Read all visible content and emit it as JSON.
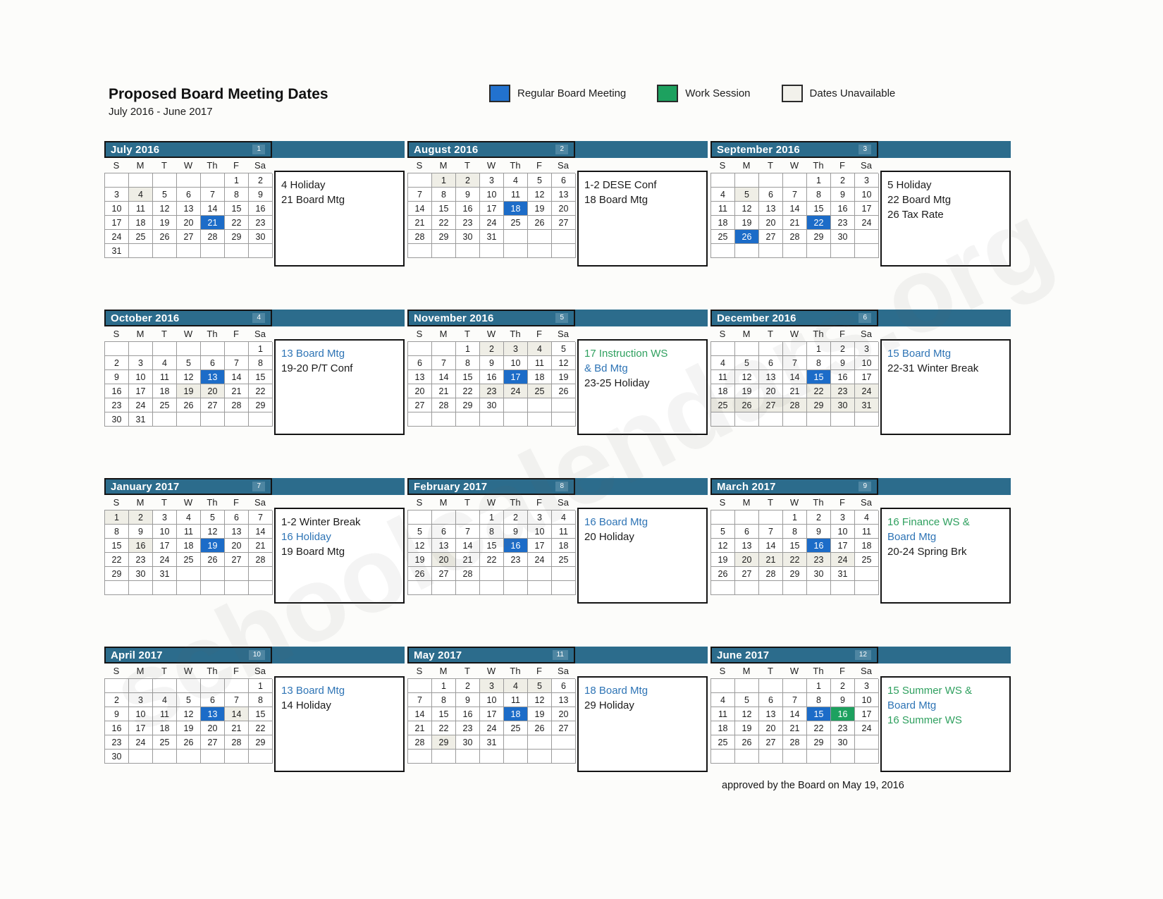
{
  "page": {
    "title": "Proposed Board Meeting Dates",
    "subtitle": "July 2016 - June 2017",
    "footer": "approved by the Board on May 19, 2016",
    "watermark": "schoolcalendars.org"
  },
  "colors": {
    "header_bar": "#2c6c8c",
    "regular_board_meeting": "#1c6cc8",
    "work_session": "#1da15f",
    "dates_unavailable": "#efeee6",
    "note_blue": "#2e74b5",
    "note_green": "#2fa05f"
  },
  "legend": [
    {
      "label": "Regular Board Meeting",
      "color": "#2272cf"
    },
    {
      "label": "Work Session",
      "color": "#1da15f"
    },
    {
      "label": "Dates Unavailable",
      "color": "#f2f1eb"
    }
  ],
  "day_headers": [
    "S",
    "M",
    "T",
    "W",
    "Th",
    "F",
    "Sa"
  ],
  "months": [
    {
      "name": "July 2016",
      "num": "1",
      "weeks": [
        [
          "",
          "",
          "",
          "",
          "",
          "1",
          "2"
        ],
        [
          "3",
          "4",
          "5",
          "6",
          "7",
          "8",
          "9"
        ],
        [
          "10",
          "11",
          "12",
          "13",
          "14",
          "15",
          "16"
        ],
        [
          "17",
          "18",
          "19",
          "20",
          "21",
          "22",
          "23"
        ],
        [
          "24",
          "25",
          "26",
          "27",
          "28",
          "29",
          "30"
        ],
        [
          "31",
          "",
          "",
          "",
          "",
          "",
          ""
        ]
      ],
      "marks": {
        "4": "unavail",
        "21": "meeting"
      },
      "notes": [
        {
          "text": "4 Holiday",
          "color": "black"
        },
        {
          "text": "21 Board Mtg",
          "color": "black"
        }
      ]
    },
    {
      "name": "August 2016",
      "num": "2",
      "weeks": [
        [
          "",
          "1",
          "2",
          "3",
          "4",
          "5",
          "6"
        ],
        [
          "7",
          "8",
          "9",
          "10",
          "11",
          "12",
          "13"
        ],
        [
          "14",
          "15",
          "16",
          "17",
          "18",
          "19",
          "20"
        ],
        [
          "21",
          "22",
          "23",
          "24",
          "25",
          "26",
          "27"
        ],
        [
          "28",
          "29",
          "30",
          "31",
          "",
          "",
          ""
        ]
      ],
      "marks": {
        "1": "unavail",
        "2": "unavail",
        "18": "meeting"
      },
      "notes": [
        {
          "text": "1-2 DESE Conf",
          "color": "black"
        },
        {
          "text": "18 Board Mtg",
          "color": "black"
        }
      ]
    },
    {
      "name": "September 2016",
      "num": "3",
      "weeks": [
        [
          "",
          "",
          "",
          "",
          "1",
          "2",
          "3"
        ],
        [
          "4",
          "5",
          "6",
          "7",
          "8",
          "9",
          "10"
        ],
        [
          "11",
          "12",
          "13",
          "14",
          "15",
          "16",
          "17"
        ],
        [
          "18",
          "19",
          "20",
          "21",
          "22",
          "23",
          "24"
        ],
        [
          "25",
          "26",
          "27",
          "28",
          "29",
          "30",
          ""
        ]
      ],
      "marks": {
        "5": "unavail",
        "22": "meeting",
        "26": "meeting"
      },
      "notes": [
        {
          "text": "5 Holiday",
          "color": "black"
        },
        {
          "text": "22 Board Mtg",
          "color": "black"
        },
        {
          "text": "26 Tax Rate",
          "color": "black"
        }
      ]
    },
    {
      "name": "October 2016",
      "num": "4",
      "weeks": [
        [
          "",
          "",
          "",
          "",
          "",
          "",
          "1"
        ],
        [
          "2",
          "3",
          "4",
          "5",
          "6",
          "7",
          "8"
        ],
        [
          "9",
          "10",
          "11",
          "12",
          "13",
          "14",
          "15"
        ],
        [
          "16",
          "17",
          "18",
          "19",
          "20",
          "21",
          "22"
        ],
        [
          "23",
          "24",
          "25",
          "26",
          "27",
          "28",
          "29"
        ],
        [
          "30",
          "31",
          "",
          "",
          "",
          "",
          ""
        ]
      ],
      "marks": {
        "13": "meeting",
        "19": "unavail",
        "20": "unavail"
      },
      "notes": [
        {
          "text": "13 Board Mtg",
          "color": "blue"
        },
        {
          "text": "19-20 P/T Conf",
          "color": "black"
        }
      ]
    },
    {
      "name": "November 2016",
      "num": "5",
      "weeks": [
        [
          "",
          "",
          "1",
          "2",
          "3",
          "4",
          "5"
        ],
        [
          "6",
          "7",
          "8",
          "9",
          "10",
          "11",
          "12"
        ],
        [
          "13",
          "14",
          "15",
          "16",
          "17",
          "18",
          "19"
        ],
        [
          "20",
          "21",
          "22",
          "23",
          "24",
          "25",
          "26"
        ],
        [
          "27",
          "28",
          "29",
          "30",
          "",
          "",
          ""
        ]
      ],
      "marks": {
        "2": "unavail",
        "3": "unavail",
        "4": "unavail",
        "17": "meeting",
        "23": "unavail",
        "24": "unavail",
        "25": "unavail"
      },
      "notes": [
        {
          "text": "17 Instruction WS",
          "color": "green"
        },
        {
          "text": "& Bd Mtg",
          "color": "blue"
        },
        {
          "text": "23-25 Holiday",
          "color": "black"
        }
      ]
    },
    {
      "name": "December 2016",
      "num": "6",
      "weeks": [
        [
          "",
          "",
          "",
          "",
          "1",
          "2",
          "3"
        ],
        [
          "4",
          "5",
          "6",
          "7",
          "8",
          "9",
          "10"
        ],
        [
          "11",
          "12",
          "13",
          "14",
          "15",
          "16",
          "17"
        ],
        [
          "18",
          "19",
          "20",
          "21",
          "22",
          "23",
          "24"
        ],
        [
          "25",
          "26",
          "27",
          "28",
          "29",
          "30",
          "31"
        ]
      ],
      "marks": {
        "15": "meeting",
        "22": "unavail",
        "23": "unavail",
        "24": "unavail",
        "25": "unavail",
        "26": "unavail",
        "27": "unavail",
        "28": "unavail",
        "29": "unavail",
        "30": "unavail",
        "31": "unavail"
      },
      "notes": [
        {
          "text": "15 Board Mtg",
          "color": "blue"
        },
        {
          "text": "22-31 Winter Break",
          "color": "black"
        }
      ]
    },
    {
      "name": "January 2017",
      "num": "7",
      "weeks": [
        [
          "1",
          "2",
          "3",
          "4",
          "5",
          "6",
          "7"
        ],
        [
          "8",
          "9",
          "10",
          "11",
          "12",
          "13",
          "14"
        ],
        [
          "15",
          "16",
          "17",
          "18",
          "19",
          "20",
          "21"
        ],
        [
          "22",
          "23",
          "24",
          "25",
          "26",
          "27",
          "28"
        ],
        [
          "29",
          "30",
          "31",
          "",
          "",
          "",
          ""
        ]
      ],
      "marks": {
        "1": "unavail",
        "2": "unavail",
        "16": "unavail",
        "19": "meeting"
      },
      "notes": [
        {
          "text": "1-2 Winter Break",
          "color": "black"
        },
        {
          "text": "16 Holiday",
          "color": "blue"
        },
        {
          "text": "19 Board Mtg",
          "color": "black"
        }
      ]
    },
    {
      "name": "February 2017",
      "num": "8",
      "weeks": [
        [
          "",
          "",
          "",
          "1",
          "2",
          "3",
          "4"
        ],
        [
          "5",
          "6",
          "7",
          "8",
          "9",
          "10",
          "11"
        ],
        [
          "12",
          "13",
          "14",
          "15",
          "16",
          "17",
          "18"
        ],
        [
          "19",
          "20",
          "21",
          "22",
          "23",
          "24",
          "25"
        ],
        [
          "26",
          "27",
          "28",
          "",
          "",
          "",
          ""
        ]
      ],
      "marks": {
        "16": "meeting",
        "20": "unavail"
      },
      "notes": [
        {
          "text": "16 Board Mtg",
          "color": "blue"
        },
        {
          "text": "20 Holiday",
          "color": "black"
        }
      ]
    },
    {
      "name": "March 2017",
      "num": "9",
      "weeks": [
        [
          "",
          "",
          "",
          "1",
          "2",
          "3",
          "4"
        ],
        [
          "5",
          "6",
          "7",
          "8",
          "9",
          "10",
          "11"
        ],
        [
          "12",
          "13",
          "14",
          "15",
          "16",
          "17",
          "18"
        ],
        [
          "19",
          "20",
          "21",
          "22",
          "23",
          "24",
          "25"
        ],
        [
          "26",
          "27",
          "28",
          "29",
          "30",
          "31",
          ""
        ]
      ],
      "marks": {
        "16": "meeting",
        "20": "unavail",
        "21": "unavail",
        "22": "unavail",
        "23": "unavail",
        "24": "unavail"
      },
      "notes": [
        {
          "text": "16 Finance WS &",
          "color": "green"
        },
        {
          "text": "Board Mtg",
          "color": "blue"
        },
        {
          "text": "20-24 Spring Brk",
          "color": "black"
        }
      ]
    },
    {
      "name": "April 2017",
      "num": "10",
      "weeks": [
        [
          "",
          "",
          "",
          "",
          "",
          "",
          "1"
        ],
        [
          "2",
          "3",
          "4",
          "5",
          "6",
          "7",
          "8"
        ],
        [
          "9",
          "10",
          "11",
          "12",
          "13",
          "14",
          "15"
        ],
        [
          "16",
          "17",
          "18",
          "19",
          "20",
          "21",
          "22"
        ],
        [
          "23",
          "24",
          "25",
          "26",
          "27",
          "28",
          "29"
        ],
        [
          "30",
          "",
          "",
          "",
          "",
          "",
          ""
        ]
      ],
      "marks": {
        "13": "meeting",
        "14": "unavail"
      },
      "notes": [
        {
          "text": "13 Board Mtg",
          "color": "blue"
        },
        {
          "text": "14 Holiday",
          "color": "black"
        }
      ]
    },
    {
      "name": "May 2017",
      "num": "11",
      "weeks": [
        [
          "",
          "1",
          "2",
          "3",
          "4",
          "5",
          "6"
        ],
        [
          "7",
          "8",
          "9",
          "10",
          "11",
          "12",
          "13"
        ],
        [
          "14",
          "15",
          "16",
          "17",
          "18",
          "19",
          "20"
        ],
        [
          "21",
          "22",
          "23",
          "24",
          "25",
          "26",
          "27"
        ],
        [
          "28",
          "29",
          "30",
          "31",
          "",
          "",
          ""
        ]
      ],
      "marks": {
        "3": "unavail",
        "4": "unavail",
        "5": "unavail",
        "18": "meeting",
        "29": "unavail"
      },
      "notes": [
        {
          "text": "18 Board Mtg",
          "color": "blue"
        },
        {
          "text": "29 Holiday",
          "color": "black"
        }
      ]
    },
    {
      "name": "June 2017",
      "num": "12",
      "weeks": [
        [
          "",
          "",
          "",
          "",
          "1",
          "2",
          "3"
        ],
        [
          "4",
          "5",
          "6",
          "7",
          "8",
          "9",
          "10"
        ],
        [
          "11",
          "12",
          "13",
          "14",
          "15",
          "16",
          "17"
        ],
        [
          "18",
          "19",
          "20",
          "21",
          "22",
          "23",
          "24"
        ],
        [
          "25",
          "26",
          "27",
          "28",
          "29",
          "30",
          ""
        ]
      ],
      "marks": {
        "15": "meeting",
        "16": "ws"
      },
      "notes": [
        {
          "text": "15 Summer WS &",
          "color": "green"
        },
        {
          "text": "Board Mtg",
          "color": "blue"
        },
        {
          "text": "16 Summer WS",
          "color": "green"
        }
      ]
    }
  ]
}
